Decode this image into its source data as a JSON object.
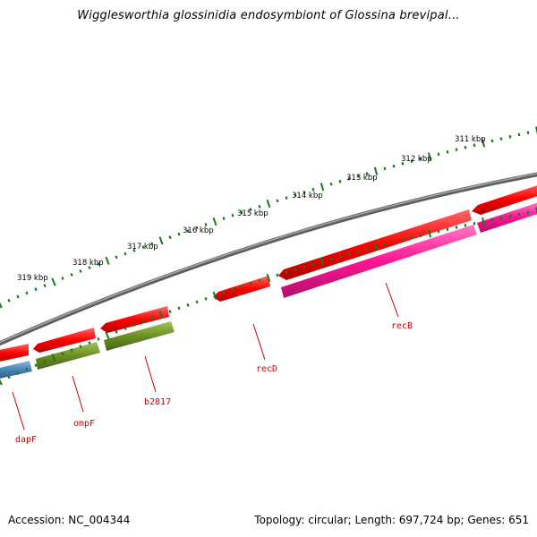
{
  "title": "Wigglesworthia glossinidia endosymbiont of Glossina brevipal...",
  "footer": {
    "accession": "Accession: NC_004344",
    "summary": "Topology: circular; Length: 697,724 bp; Genes: 651"
  },
  "scale": {
    "labels": [
      "311 kbp",
      "312 kbp",
      "313 kbp",
      "314 kbp",
      "315 kbp",
      "316 kbp",
      "317 kbp",
      "318 kbp",
      "319 kbp"
    ]
  },
  "genes": [
    {
      "name": "recB",
      "color": "#ff1493",
      "strand": "reverse"
    },
    {
      "name": "recD",
      "color": "#ff0000",
      "strand": "reverse"
    },
    {
      "name": "b2817",
      "color": "#6b8e23",
      "strand": "forward"
    },
    {
      "name": "ompF",
      "color": "#6b8e23",
      "strand": "forward"
    },
    {
      "name": "dapF",
      "color": "#4682b4",
      "strand": "forward"
    }
  ],
  "colors": {
    "backbone": "#7f7f7f",
    "cds_track": "#ff0000",
    "tick": "#1a7a1a",
    "label": "#cc0000",
    "pink": "#ff1493",
    "olive": "#6b8e23",
    "steel": "#4682b4"
  }
}
